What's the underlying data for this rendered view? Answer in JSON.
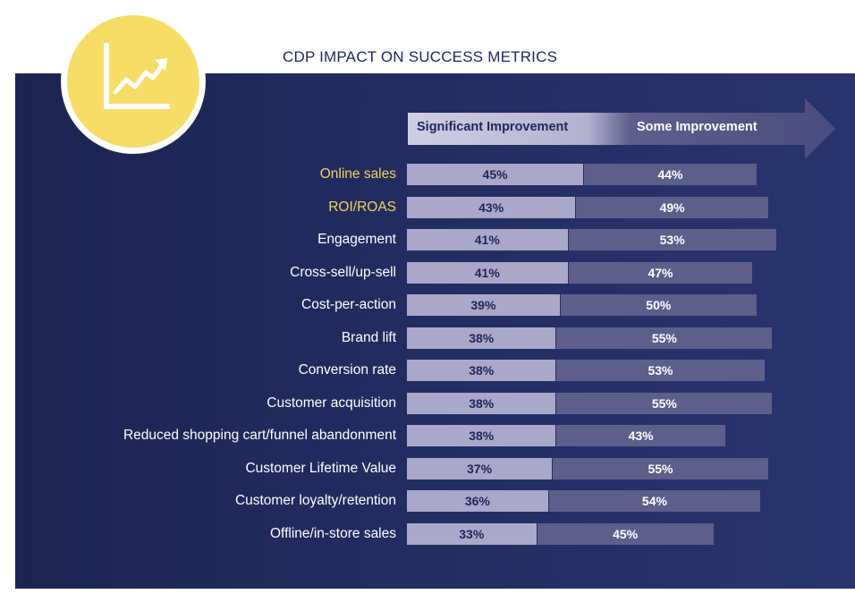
{
  "title": "CDP IMPACT ON SUCCESS METRICS",
  "icon": "line-chart-trend-icon",
  "colors": {
    "background_panel": "#232e63",
    "badge": "#f5dd68",
    "significant_bar": "#a9a8c8",
    "some_bar": "#5d5e8a",
    "highlight_label": "#f2d35e"
  },
  "chart_data": {
    "type": "bar",
    "orientation": "horizontal",
    "stacked": true,
    "title": "CDP IMPACT ON SUCCESS METRICS",
    "categories": [
      "Online sales",
      "ROI/ROAS",
      "Engagement",
      "Cross-sell/up-sell",
      "Cost-per-action",
      "Brand lift",
      "Conversion rate",
      "Customer acquisition",
      "Reduced shopping cart/funnel abandonment",
      "Customer Lifetime Value",
      "Customer loyalty/retention",
      "Offline/in-store sales"
    ],
    "highlighted_categories": [
      "Online sales",
      "ROI/ROAS"
    ],
    "series": [
      {
        "name": "Significant Improvement",
        "values": [
          45,
          43,
          41,
          41,
          39,
          38,
          38,
          38,
          38,
          37,
          36,
          33
        ]
      },
      {
        "name": "Some Improvement",
        "values": [
          44,
          49,
          53,
          47,
          50,
          55,
          53,
          55,
          43,
          55,
          54,
          45
        ]
      }
    ],
    "value_suffix": "%",
    "legend_position": "top",
    "grid": false
  }
}
